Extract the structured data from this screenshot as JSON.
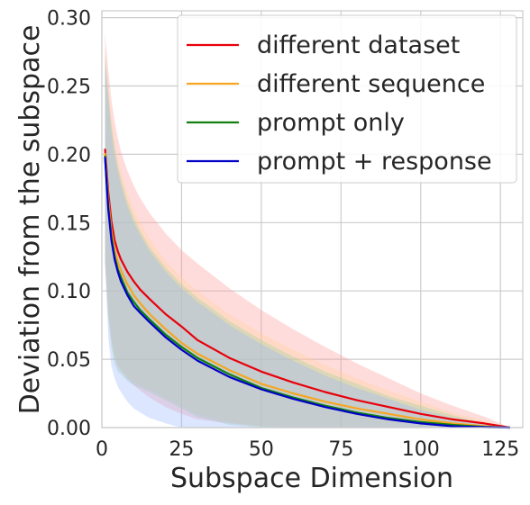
{
  "chart_data": {
    "type": "line",
    "title": "",
    "xlabel": "Subspace Dimension",
    "ylabel": "Deviation from the subspace",
    "xlim": [
      0,
      132
    ],
    "ylim": [
      0,
      0.305
    ],
    "xticks": [
      0,
      25,
      50,
      75,
      100,
      125
    ],
    "xtick_labels": [
      "0",
      "25",
      "50",
      "75",
      "100",
      "125"
    ],
    "yticks": [
      0.0,
      0.05,
      0.1,
      0.15,
      0.2,
      0.25,
      0.3
    ],
    "ytick_labels": [
      "0.00",
      "0.05",
      "0.10",
      "0.15",
      "0.20",
      "0.25",
      "0.30"
    ],
    "grid": true,
    "legend_position": "top-right",
    "x": [
      1,
      2,
      3,
      4,
      5,
      6,
      8,
      10,
      12,
      15,
      20,
      25,
      30,
      40,
      50,
      60,
      70,
      80,
      90,
      100,
      110,
      120,
      128
    ],
    "series": [
      {
        "name": "different dataset",
        "color": "#e8000b",
        "band_color": "#ff9a9a",
        "values": [
          0.204,
          0.172,
          0.151,
          0.137,
          0.129,
          0.123,
          0.114,
          0.107,
          0.101,
          0.094,
          0.083,
          0.074,
          0.064,
          0.051,
          0.041,
          0.033,
          0.026,
          0.02,
          0.015,
          0.01,
          0.006,
          0.003,
          0.0
        ],
        "upper": [
          0.288,
          0.262,
          0.24,
          0.224,
          0.212,
          0.202,
          0.188,
          0.177,
          0.168,
          0.157,
          0.142,
          0.13,
          0.12,
          0.102,
          0.086,
          0.072,
          0.059,
          0.047,
          0.036,
          0.025,
          0.016,
          0.008,
          0.0
        ],
        "lower": [
          0.12,
          0.085,
          0.065,
          0.052,
          0.046,
          0.042,
          0.036,
          0.031,
          0.027,
          0.022,
          0.015,
          0.01,
          0.006,
          0.003,
          0.001,
          0.0,
          0.0,
          0.0,
          0.0,
          0.0,
          0.0,
          0.0,
          0.0
        ]
      },
      {
        "name": "different sequence",
        "color": "#f5a623",
        "band_color": "#ffd39a",
        "values": [
          0.201,
          0.166,
          0.144,
          0.13,
          0.121,
          0.115,
          0.105,
          0.097,
          0.091,
          0.083,
          0.072,
          0.062,
          0.054,
          0.042,
          0.032,
          0.025,
          0.019,
          0.014,
          0.01,
          0.006,
          0.003,
          0.001,
          0.0
        ],
        "upper": [
          0.278,
          0.25,
          0.228,
          0.211,
          0.198,
          0.188,
          0.172,
          0.16,
          0.15,
          0.138,
          0.122,
          0.11,
          0.1,
          0.083,
          0.069,
          0.057,
          0.046,
          0.036,
          0.027,
          0.019,
          0.011,
          0.005,
          0.0
        ],
        "lower": [
          0.125,
          0.084,
          0.062,
          0.05,
          0.044,
          0.041,
          0.037,
          0.033,
          0.031,
          0.028,
          0.022,
          0.016,
          0.01,
          0.004,
          0.001,
          0.0,
          0.0,
          0.0,
          0.0,
          0.0,
          0.0,
          0.0,
          0.0
        ]
      },
      {
        "name": "prompt only",
        "color": "#108010",
        "band_color": "#9ad39a",
        "values": [
          0.199,
          0.162,
          0.14,
          0.125,
          0.116,
          0.11,
          0.099,
          0.092,
          0.086,
          0.079,
          0.068,
          0.059,
          0.051,
          0.039,
          0.029,
          0.022,
          0.016,
          0.011,
          0.007,
          0.004,
          0.002,
          0.0005,
          0.0
        ],
        "upper": [
          0.274,
          0.246,
          0.222,
          0.205,
          0.192,
          0.182,
          0.166,
          0.154,
          0.144,
          0.132,
          0.117,
          0.105,
          0.095,
          0.078,
          0.064,
          0.052,
          0.041,
          0.032,
          0.023,
          0.016,
          0.009,
          0.003,
          0.0
        ],
        "lower": [
          0.124,
          0.08,
          0.058,
          0.047,
          0.041,
          0.039,
          0.034,
          0.031,
          0.029,
          0.026,
          0.02,
          0.014,
          0.008,
          0.002,
          0.0,
          0.0,
          0.0,
          0.0,
          0.0,
          0.0,
          0.0,
          0.0,
          0.0
        ]
      },
      {
        "name": "prompt + response",
        "color": "#0000c8",
        "band_color": "#9ab8ff",
        "values": [
          0.198,
          0.16,
          0.137,
          0.123,
          0.114,
          0.107,
          0.097,
          0.089,
          0.084,
          0.077,
          0.066,
          0.057,
          0.049,
          0.037,
          0.028,
          0.021,
          0.015,
          0.01,
          0.006,
          0.003,
          0.001,
          0.0003,
          0.0
        ],
        "upper": [
          0.27,
          0.24,
          0.216,
          0.2,
          0.188,
          0.178,
          0.162,
          0.15,
          0.141,
          0.129,
          0.114,
          0.102,
          0.092,
          0.075,
          0.061,
          0.049,
          0.038,
          0.029,
          0.021,
          0.013,
          0.007,
          0.002,
          0.0
        ],
        "lower": [
          0.12,
          0.066,
          0.045,
          0.036,
          0.03,
          0.026,
          0.019,
          0.014,
          0.011,
          0.007,
          0.003,
          0.0,
          0.0,
          0.0,
          0.0,
          0.0,
          0.0,
          0.0,
          0.0,
          0.0,
          0.0,
          0.0,
          0.0
        ]
      }
    ]
  }
}
